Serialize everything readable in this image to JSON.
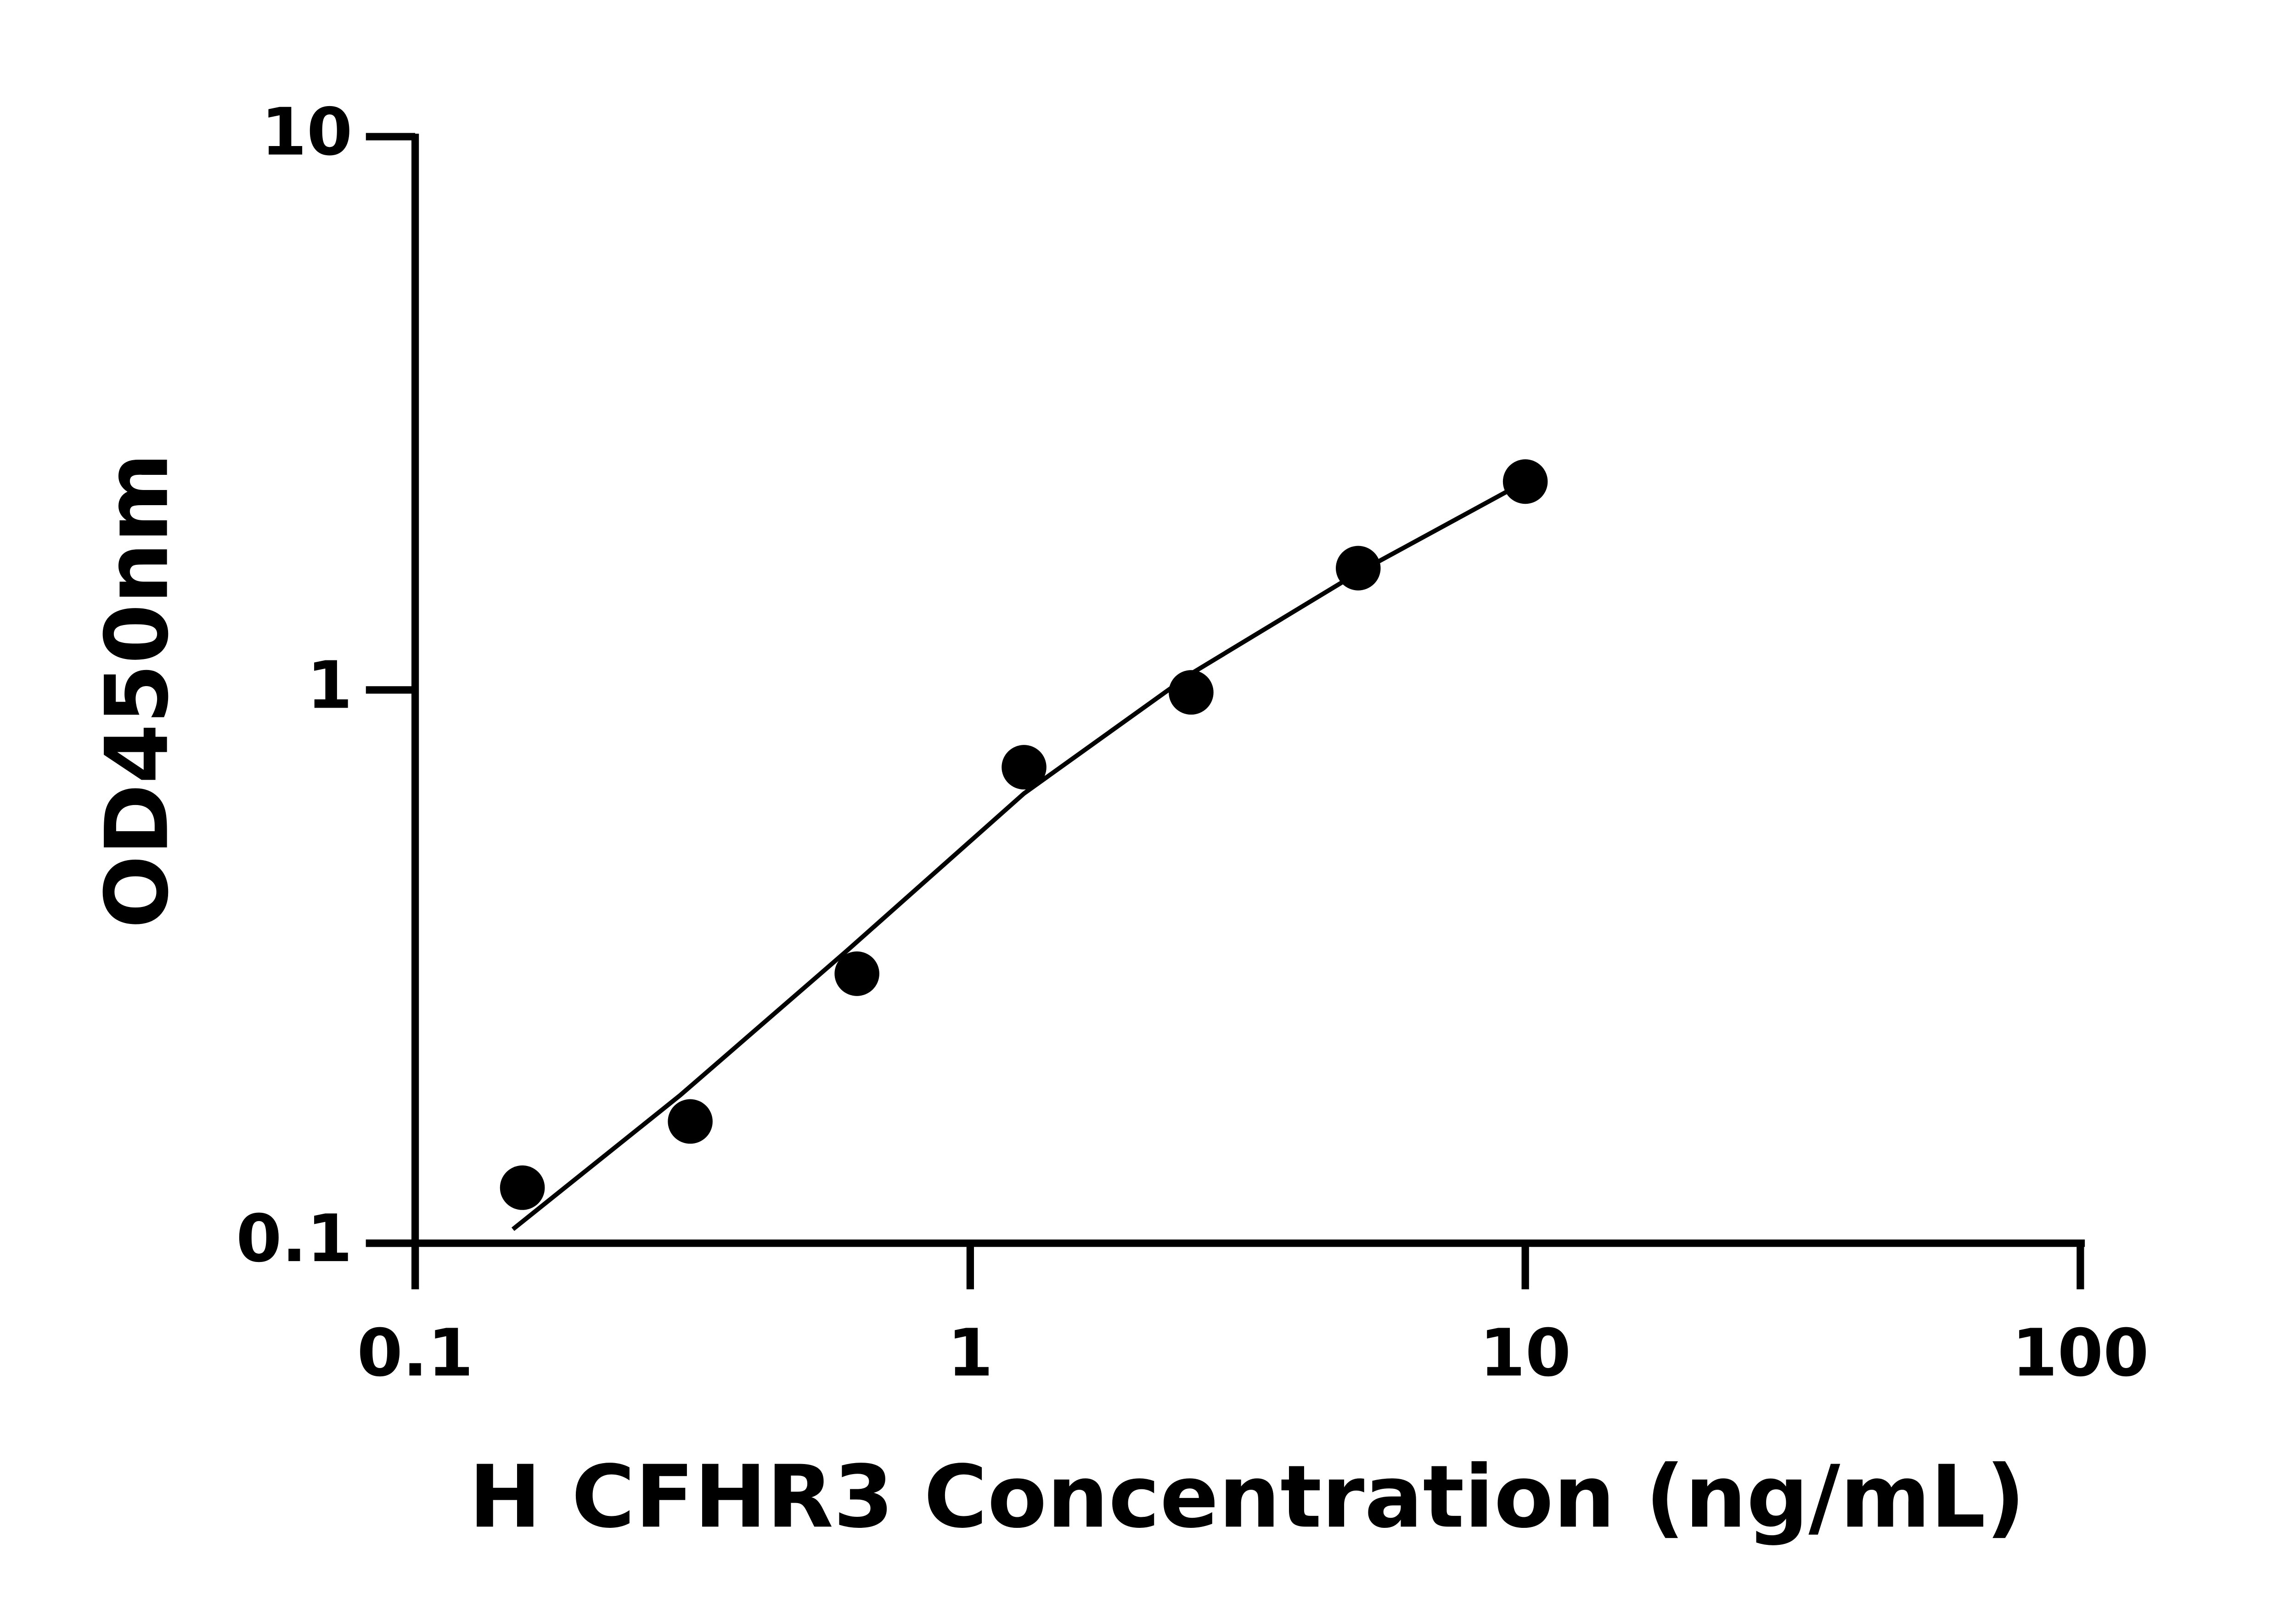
{
  "chart_data": {
    "type": "scatter",
    "xlabel": "H CFHR3 Concentration (ng/mL)",
    "ylabel": "OD450nm",
    "x_scale": "log",
    "y_scale": "log",
    "xlim": [
      0.1,
      100
    ],
    "xticks": [
      0.1,
      1,
      10,
      100
    ],
    "ylim": [
      0.1,
      10
    ],
    "yticks": [
      0.1,
      1,
      10
    ],
    "color": "#000000",
    "x": [
      0.156,
      0.313,
      0.625,
      1.25,
      2.5,
      5,
      10
    ],
    "values": [
      0.126,
      0.166,
      0.307,
      0.725,
      0.99,
      1.66,
      2.38
    ],
    "curve": {
      "x": [
        0.15,
        0.3,
        0.6,
        1.25,
        2.5,
        5,
        10
      ],
      "values": [
        0.106,
        0.185,
        0.338,
        0.65,
        1.07,
        1.63,
        2.38
      ]
    }
  }
}
